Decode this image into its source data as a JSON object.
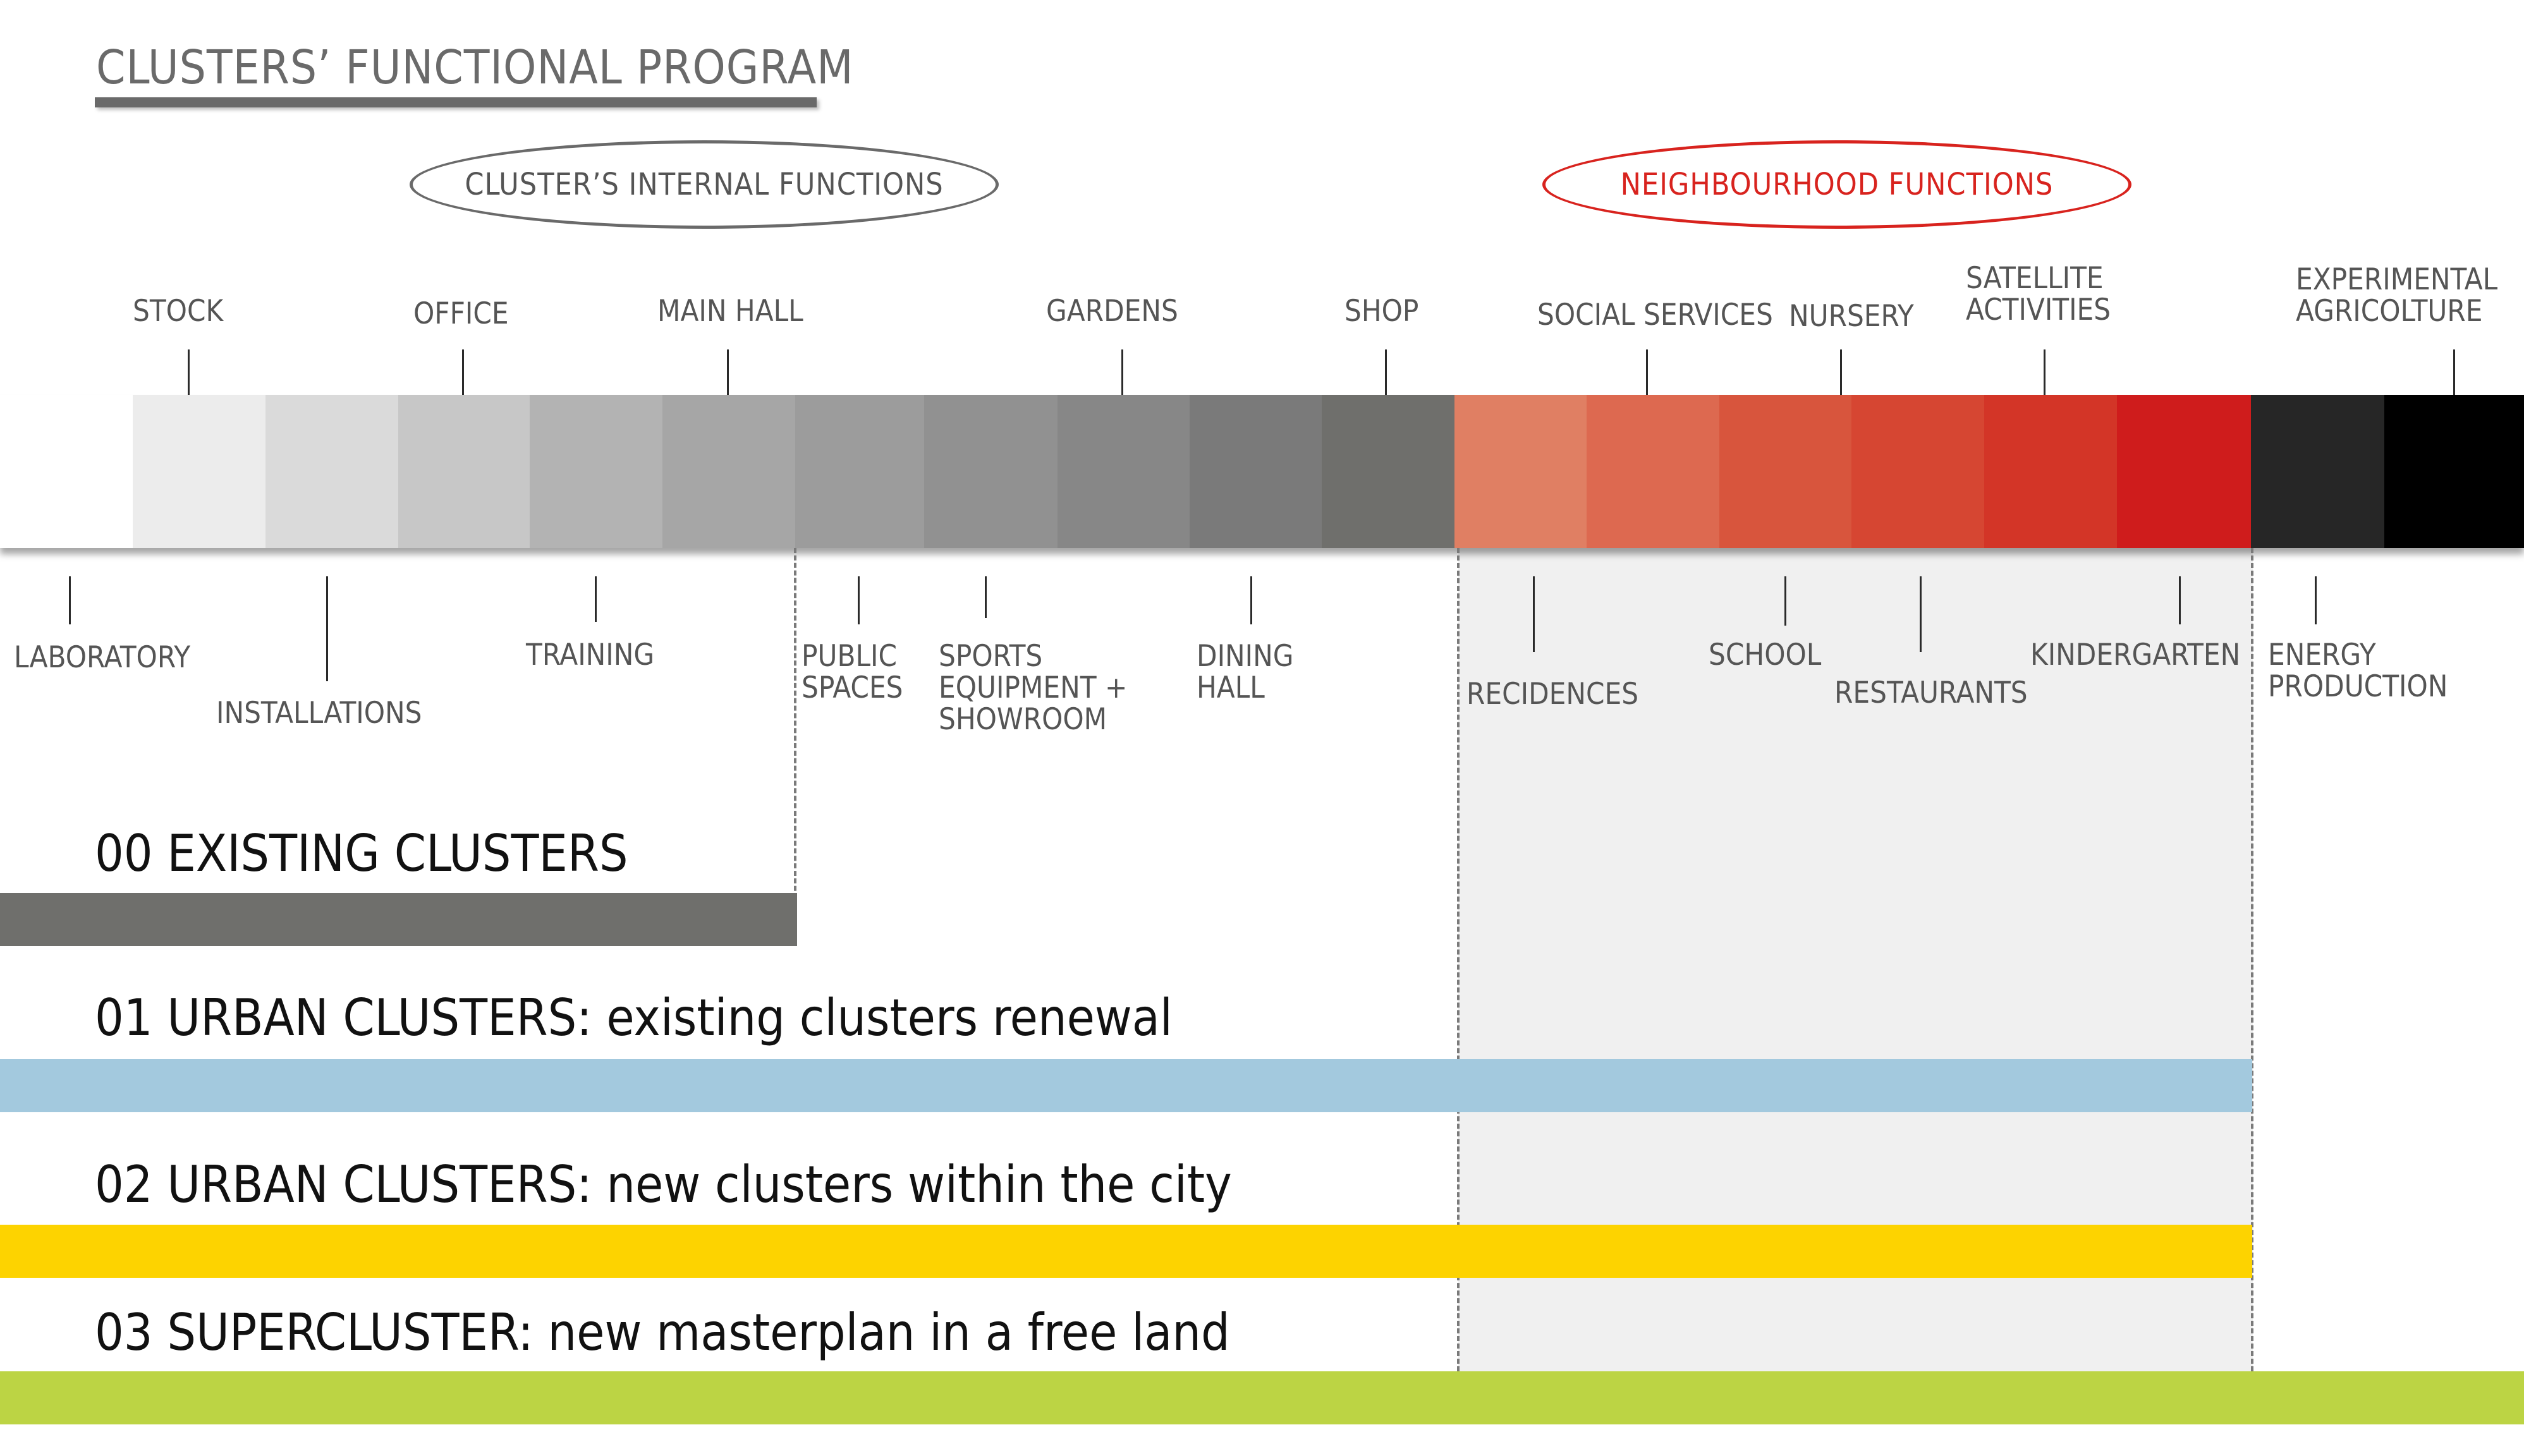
{
  "title": "CLUSTERS’ FUNCTIONAL PROGRAM",
  "groups": {
    "internal": "CLUSTER’S INTERNAL FUNCTIONS",
    "neighbourhood": "NEIGHBOURHOOD FUNCTIONS"
  },
  "top_labels": {
    "stock": "STOCK",
    "office": "OFFICE",
    "main_hall": "MAIN HALL",
    "gardens": "GARDENS",
    "shop": "SHOP",
    "social_services": "SOCIAL SERVICES",
    "nursery": "NURSERY",
    "satellite": "SATELLITE\nACTIVITIES",
    "experimental": "EXPERIMENTAL\nAGRICOLTURE"
  },
  "bottom_labels": {
    "laboratory": "LABORATORY",
    "installations": "INSTALLATIONS",
    "training": "TRAINING",
    "public_spaces": "PUBLIC\nSPACES",
    "sports": "SPORTS\nEQUIPMENT +\nSHOWROOM",
    "dining": "DINING\nHALL",
    "recidences": "RECIDENCES",
    "school": "SCHOOL",
    "restaurants": "RESTAURANTS",
    "kindergarten": "KINDERGARTEN",
    "energy": "ENERGY\nPRODUCTION"
  },
  "rows": {
    "r00": "00 EXISTING CLUSTERS",
    "r01_prefix": "01 URBAN CLUSTERS:",
    "r01_suffix": "existing clusters renewal",
    "r02_prefix": "02 URBAN CLUSTERS:",
    "r02_suffix": "new clusters within the city",
    "r03_prefix": "03 SUPERCLUSTER:",
    "r03_suffix": "new masterplan in a free land"
  },
  "colors": {
    "gray_ramp": [
      "#ffffff",
      "#ececec",
      "#dadada",
      "#c7c7c7",
      "#b3b3b3",
      "#a6a6a6",
      "#9c9c9c",
      "#919191",
      "#878787",
      "#7a7a7a",
      "#6f6f6c"
    ],
    "red_ramp": [
      "#e07f63",
      "#dd6950",
      "#d8553d",
      "#d64632",
      "#d33527",
      "#cf1c1c"
    ],
    "dark_ramp": [
      "#262626",
      "#000000"
    ],
    "existing": "#6f6f6c",
    "urban_renewal": "#a3c9de",
    "urban_new": "#fdd300",
    "supercluster": "#bcd444",
    "neighbourhood_accent": "#d8231e",
    "title_gray": "#6a6a6a"
  }
}
